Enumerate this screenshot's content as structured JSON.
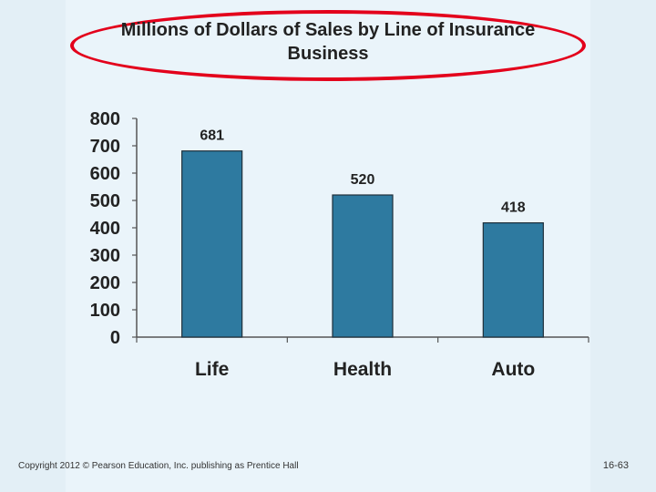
{
  "chart_data": {
    "type": "bar",
    "title": "Millions of Dollars of Sales by Line of Insurance Business",
    "categories": [
      "Life",
      "Health",
      "Auto"
    ],
    "values": [
      681,
      520,
      418
    ],
    "data_labels": [
      "681",
      "520",
      "418"
    ],
    "ylim": [
      0,
      800
    ],
    "yticks": [
      "0",
      "100",
      "200",
      "300",
      "400",
      "500",
      "600",
      "700",
      "800"
    ],
    "xlabel": "",
    "ylabel": "",
    "grid": false,
    "bar_color": "#2e7aa0"
  },
  "footer": {
    "copyright": "Copyright 2012 © Pearson Education, Inc. publishing as Prentice Hall",
    "slide_number": "16-63"
  },
  "colors": {
    "background": "#eaf4fa",
    "ellipse": "#e3001b"
  }
}
